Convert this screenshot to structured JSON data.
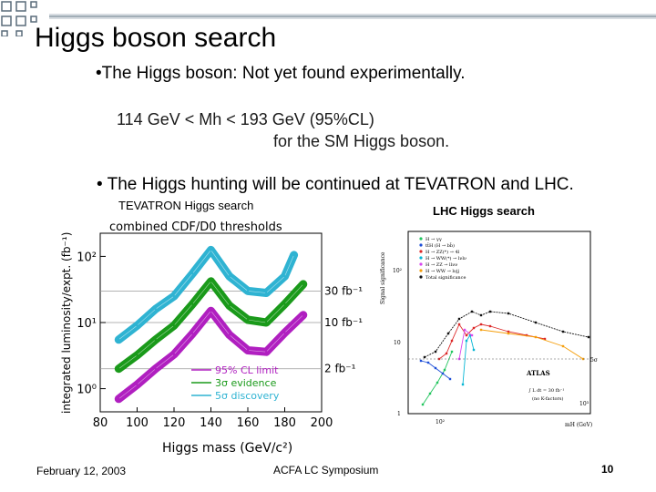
{
  "slide": {
    "title": "Higgs boson search",
    "bullet1": "•The Higgs boson:  Not yet found experimentally.",
    "limit_line1": "114 GeV < Mh < 193 GeV (95%CL)",
    "limit_line2": "for the SM Higgs boson.",
    "bullet2": "• The Higgs hunting will be continued at TEVATRON and LHC.",
    "tevatron_caption": "TEVATRON Higgs search",
    "lhc_caption": "LHC Higgs search",
    "footer_date": "February 12, 2003",
    "footer_conference": "ACFA LC Symposium",
    "page_number": "10"
  },
  "colors": {
    "deco_square": "#5a6c7a",
    "deco_line": "#6d7f8c",
    "cyan": "#2fb3d2",
    "green": "#1a9a1a",
    "purple": "#b01fc0"
  },
  "chart_data": [
    {
      "type": "line",
      "title": "combined CDF/D0 thresholds",
      "xlabel": "Higgs mass (GeV/c²)",
      "ylabel": "integrated luminosity/expt. (fb⁻¹)",
      "x_ticks": [
        "80",
        "100",
        "120",
        "140",
        "160",
        "180",
        "200"
      ],
      "y_ticks": [
        "10²",
        "10¹",
        "10⁰"
      ],
      "xlim": [
        80,
        200
      ],
      "y_scale": "log",
      "ylim_log10": [
        -0.35,
        2.35
      ],
      "reference_lines": [
        {
          "value": 30,
          "label": "30 fb⁻¹"
        },
        {
          "value": 10,
          "label": "10 fb⁻¹"
        },
        {
          "value": 2,
          "label": "2 fb⁻¹"
        }
      ],
      "legend": {
        "placement": "bottom-right",
        "entries": [
          "95% CL limit",
          "3σ evidence",
          "5σ discovery"
        ]
      },
      "series": [
        {
          "name": "5σ discovery",
          "color": "#2fb3d2",
          "x": [
            90,
            100,
            110,
            120,
            130,
            140,
            150,
            160,
            170,
            180,
            185
          ],
          "y": [
            5.5,
            9,
            16,
            25,
            55,
            125,
            50,
            30,
            28,
            50,
            105
          ]
        },
        {
          "name": "3σ evidence",
          "color": "#1a9a1a",
          "x": [
            90,
            100,
            110,
            120,
            130,
            140,
            150,
            160,
            170,
            180,
            190
          ],
          "y": [
            2.0,
            3.2,
            5.5,
            9,
            19,
            42,
            18,
            11,
            10,
            19,
            38
          ]
        },
        {
          "name": "95% CL limit",
          "color": "#b01fc0",
          "x": [
            90,
            100,
            110,
            120,
            130,
            140,
            150,
            160,
            170,
            180,
            190
          ],
          "y": [
            0.7,
            1.15,
            2.0,
            3.3,
            6.8,
            15,
            6.5,
            3.8,
            3.6,
            7,
            13
          ]
        }
      ]
    },
    {
      "type": "scatter",
      "title": "",
      "ylabel": "Signal significance",
      "xlabel": "mH (GeV)",
      "y_ticks": [
        "10²",
        "10",
        "1"
      ],
      "x_ticks": [
        "10²",
        "10³"
      ],
      "annotations": [
        "ATLAS",
        "∫ L dt = 30 fb⁻¹",
        "(no K-factors)",
        "5σ"
      ],
      "legend_entries": [
        "H → γγ",
        "tt̄H (H → bb̄)",
        "H → ZZ(*) → 4l",
        "H → WW(*) → lνlν",
        "H → ZZ → llνν",
        "H → WW → lνjj",
        "Total significance"
      ]
    }
  ]
}
